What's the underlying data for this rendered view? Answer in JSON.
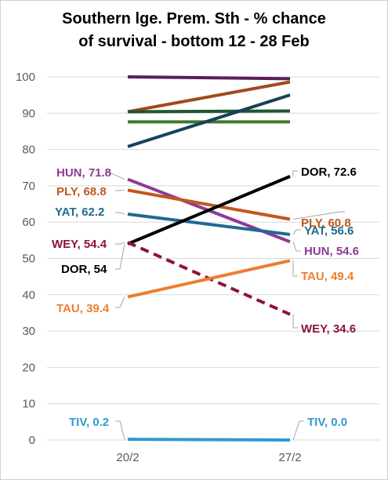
{
  "chart_data": {
    "type": "line",
    "title_lines": [
      "Southern lge. Prem. Sth - % chance",
      "of survival - bottom 12 - 28 Feb"
    ],
    "categories": [
      "20/2",
      "27/2"
    ],
    "ylim": [
      0,
      100
    ],
    "yticks": [
      0,
      10,
      20,
      30,
      40,
      50,
      60,
      70,
      80,
      90,
      100
    ],
    "grid": true,
    "legend": "none",
    "series": [
      {
        "values": [
          100,
          99.5
        ],
        "color": "#5b1e5c",
        "dashed": false
      },
      {
        "values": [
          90.4,
          98.6
        ],
        "color": "#a04a1c",
        "dashed": false
      },
      {
        "values": [
          90.4,
          90.6
        ],
        "color": "#1e5631",
        "dashed": false
      },
      {
        "values": [
          87.6,
          87.6
        ],
        "color": "#3d7a2a",
        "dashed": false
      },
      {
        "values": [
          80.8,
          95.0
        ],
        "color": "#17405a",
        "dashed": false
      },
      {
        "name": "HUN",
        "values": [
          71.8,
          54.6
        ],
        "color": "#8e3a96",
        "dashed": false,
        "labels": [
          "HUN, 71.8",
          "HUN, 54.6"
        ]
      },
      {
        "name": "PLY",
        "values": [
          68.8,
          60.8
        ],
        "color": "#c0571e",
        "dashed": false,
        "labels": [
          "PLY, 68.8",
          "PLY, 60.8"
        ]
      },
      {
        "name": "YAT",
        "values": [
          62.2,
          56.6
        ],
        "color": "#1f6b8e",
        "dashed": false,
        "labels": [
          "YAT, 62.2",
          "YAT, 56.6"
        ]
      },
      {
        "name": "DOR",
        "values": [
          54,
          72.6
        ],
        "color": "#000000",
        "dashed": false,
        "labels": [
          "DOR, 54",
          "DOR, 72.6"
        ]
      },
      {
        "name": "WEY",
        "values": [
          54.4,
          34.6
        ],
        "color": "#8b1537",
        "dashed": true,
        "labels": [
          "WEY, 54.4",
          "WEY, 34.6"
        ]
      },
      {
        "name": "TAU",
        "values": [
          39.4,
          49.4
        ],
        "color": "#ed7d31",
        "dashed": false,
        "labels": [
          "TAU, 39.4",
          "TAU, 49.4"
        ]
      },
      {
        "name": "TIV",
        "values": [
          0.2,
          0.0
        ],
        "color": "#2e9ad0",
        "dashed": false,
        "labels": [
          "TIV, 0.2",
          "TIV, 0.0"
        ]
      }
    ]
  }
}
